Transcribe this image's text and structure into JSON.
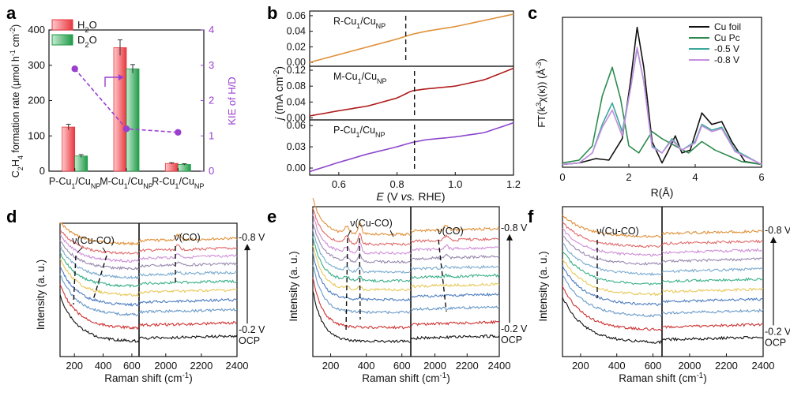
{
  "panels": {
    "a": {
      "label": "a"
    },
    "b": {
      "label": "b"
    },
    "c": {
      "label": "c"
    },
    "d": {
      "label": "d"
    },
    "e": {
      "label": "e"
    },
    "f": {
      "label": "f"
    }
  },
  "chart_data": [
    {
      "id": "a",
      "type": "bar",
      "categories": [
        "P-Cu1/CuNP",
        "M-Cu1/CuNP",
        "R-Cu1/CuNP"
      ],
      "series": [
        {
          "name": "H2O",
          "values": [
            125,
            350,
            22
          ],
          "errors": [
            8,
            22,
            2
          ],
          "color": "#e8373f"
        },
        {
          "name": "D2O",
          "values": [
            43,
            290,
            19
          ],
          "errors": [
            4,
            12,
            2
          ],
          "color": "#1f9a47"
        }
      ],
      "kie": {
        "values": [
          2.9,
          1.2,
          1.1
        ],
        "color": "#9a3fd0",
        "ylabel": "KIE of H/D",
        "ylim": [
          0,
          4
        ],
        "yticks": [
          "0",
          "1",
          "2",
          "3",
          "4"
        ]
      },
      "ylabel": "C2H4 formation rate (μmol h-1 cm-2)",
      "ylim": [
        0,
        400
      ],
      "yticks": [
        "0",
        "100",
        "200",
        "300",
        "400"
      ],
      "legend_position": "top-left"
    },
    {
      "id": "b",
      "type": "line",
      "xlabel": "E (V vs. RHE)",
      "ylabel": "j (mA cm-2)",
      "xlim": [
        0.5,
        1.2
      ],
      "xticks": [
        "0.6",
        "0.8",
        "1.0",
        "1.2"
      ],
      "subpanels": [
        {
          "name": "R-Cu1/CuNP",
          "color": "#e0913a",
          "ylim": [
            -0.005,
            0.066
          ],
          "yticks": [
            "0.00",
            "0.02",
            "0.04",
            "0.06"
          ],
          "marker": 0.83,
          "x": [
            0.5,
            0.6,
            0.7,
            0.8,
            0.85,
            0.9,
            1.0,
            1.1,
            1.2
          ],
          "y": [
            0.0,
            0.01,
            0.02,
            0.03,
            0.036,
            0.04,
            0.046,
            0.054,
            0.062
          ]
        },
        {
          "name": "M-Cu1/CuNP",
          "color": "#b01c1c",
          "ylim": [
            -0.005,
            0.13
          ],
          "yticks": [
            "0.00",
            "0.04",
            "0.08",
            "0.12"
          ],
          "marker": 0.86,
          "x": [
            0.5,
            0.6,
            0.7,
            0.8,
            0.85,
            0.9,
            1.0,
            1.1,
            1.2
          ],
          "y": [
            0.005,
            0.018,
            0.03,
            0.05,
            0.068,
            0.073,
            0.08,
            0.096,
            0.125
          ]
        },
        {
          "name": "P-Cu1/CuNP",
          "color": "#8c46cc",
          "ylim": [
            -0.01,
            0.068
          ],
          "yticks": [
            "0.00",
            "0.03",
            "0.06"
          ],
          "marker": 0.86,
          "x": [
            0.5,
            0.6,
            0.7,
            0.8,
            0.85,
            0.9,
            1.0,
            1.1,
            1.2
          ],
          "y": [
            -0.005,
            0.008,
            0.02,
            0.03,
            0.036,
            0.04,
            0.044,
            0.05,
            0.064
          ]
        }
      ]
    },
    {
      "id": "c",
      "type": "line",
      "xlabel": "R(Å)",
      "ylabel": "FT(k3χ(κ)) (Å-3)",
      "xlim": [
        0,
        6
      ],
      "xticks": [
        "0",
        "2",
        "4",
        "6"
      ],
      "legend_position": "top-right",
      "series": [
        {
          "name": "Cu foil",
          "color": "#111111",
          "x": [
            0,
            0.5,
            1.0,
            1.4,
            1.8,
            2.05,
            2.25,
            2.45,
            2.7,
            3.0,
            3.2,
            3.4,
            3.6,
            3.85,
            4.2,
            4.5,
            4.8,
            5.1,
            5.5,
            6
          ],
          "y": [
            0.02,
            0.03,
            0.06,
            0.05,
            0.2,
            0.6,
            0.98,
            0.7,
            0.18,
            0.03,
            0.12,
            0.22,
            0.1,
            0.12,
            0.38,
            0.3,
            0.32,
            0.18,
            0.04,
            0.02
          ]
        },
        {
          "name": "Cu Pc",
          "color": "#2e8b4f",
          "x": [
            0,
            0.5,
            0.9,
            1.2,
            1.5,
            1.75,
            2.0,
            2.3,
            2.7,
            3.0,
            3.4,
            3.8,
            4.2,
            4.6,
            5.0,
            5.4,
            6
          ],
          "y": [
            0.03,
            0.05,
            0.15,
            0.5,
            0.7,
            0.48,
            0.15,
            0.1,
            0.25,
            0.2,
            0.15,
            0.1,
            0.18,
            0.12,
            0.08,
            0.04,
            0.02
          ]
        },
        {
          "name": "-0.5 V",
          "color": "#3aa89a",
          "x": [
            0,
            0.5,
            0.9,
            1.2,
            1.5,
            1.8,
            2.05,
            2.25,
            2.45,
            2.7,
            3.0,
            3.3,
            3.6,
            4.0,
            4.2,
            4.5,
            4.8,
            5.2,
            6
          ],
          "y": [
            0.02,
            0.03,
            0.1,
            0.3,
            0.45,
            0.25,
            0.55,
            0.83,
            0.6,
            0.15,
            0.1,
            0.2,
            0.12,
            0.18,
            0.3,
            0.26,
            0.28,
            0.12,
            0.02
          ]
        },
        {
          "name": "-0.8 V",
          "color": "#c68ee0",
          "x": [
            0,
            0.5,
            0.9,
            1.2,
            1.5,
            1.8,
            2.05,
            2.25,
            2.45,
            2.7,
            3.0,
            3.3,
            3.6,
            4.0,
            4.2,
            4.5,
            4.8,
            5.2,
            6
          ],
          "y": [
            0.02,
            0.03,
            0.1,
            0.28,
            0.4,
            0.22,
            0.55,
            0.84,
            0.6,
            0.14,
            0.1,
            0.19,
            0.12,
            0.17,
            0.29,
            0.25,
            0.27,
            0.11,
            0.02
          ]
        }
      ]
    },
    {
      "id": "d",
      "type": "line",
      "xlabel": "Raman shift (cm-1)",
      "ylabel": "Intensity (a. u.)",
      "left_xlim": [
        100,
        650
      ],
      "left_xticks": [
        "200",
        "400",
        "600"
      ],
      "right_xlim": [
        1850,
        2400
      ],
      "right_xticks": [
        "2000",
        "2200",
        "2400"
      ],
      "peak_labels": [
        "ν(Cu-CO)",
        "ν(CO)"
      ],
      "potential_labels": [
        "-0.8 V",
        "-0.2 V",
        "OCP"
      ],
      "curves": 11,
      "tail_levels": [
        0.97,
        0.88,
        0.81,
        0.74,
        0.66,
        0.58,
        0.5,
        0.41,
        0.32,
        0.2,
        0.08
      ],
      "colors": [
        "#e0913a",
        "#e06a6a",
        "#cf8fd8",
        "#9a8ab0",
        "#7aaad0",
        "#3ab08a",
        "#e7c95a",
        "#4f7ec0",
        "#6a9ac8",
        "#cf3434",
        "#111111"
      ]
    },
    {
      "id": "e",
      "type": "line",
      "xlabel": "Raman shift (cm-1)",
      "ylabel": "Intensity (a. u.)",
      "left_xlim": [
        100,
        650
      ],
      "left_xticks": [
        "200",
        "400",
        "600"
      ],
      "right_xlim": [
        1850,
        2400
      ],
      "right_xticks": [
        "2000",
        "2200",
        "2400"
      ],
      "peak_labels": [
        "ν(Cu-CO)",
        "ν(CO)"
      ],
      "potential_labels": [
        "-0.8 V",
        "-0.2 V",
        "OCP"
      ],
      "curves": 11,
      "tail_levels": [
        0.92,
        0.84,
        0.77,
        0.7,
        0.62,
        0.55,
        0.48,
        0.4,
        0.3,
        0.18,
        0.07
      ],
      "colors": [
        "#e0913a",
        "#e06a6a",
        "#cf8fd8",
        "#9a8ab0",
        "#7aaad0",
        "#3ab08a",
        "#e7c95a",
        "#4f7ec0",
        "#6a9ac8",
        "#cf3434",
        "#111111"
      ]
    },
    {
      "id": "f",
      "type": "line",
      "xlabel": "Raman shift (cm-1)",
      "ylabel": "Intensity (a. u.)",
      "left_xlim": [
        100,
        650
      ],
      "left_xticks": [
        "200",
        "400",
        "600"
      ],
      "right_xlim": [
        1850,
        2400
      ],
      "right_xticks": [
        "2000",
        "2200",
        "2400"
      ],
      "peak_labels": [
        "ν(Cu-CO)"
      ],
      "potential_labels": [
        "-0.8 V",
        "-0.2 V",
        "OCP"
      ],
      "curves": 11,
      "tail_levels": [
        0.9,
        0.82,
        0.75,
        0.68,
        0.6,
        0.52,
        0.44,
        0.36,
        0.27,
        0.16,
        0.06
      ],
      "colors": [
        "#e0913a",
        "#e06a6a",
        "#cf8fd8",
        "#9a8ab0",
        "#7aaad0",
        "#3ab08a",
        "#e7c95a",
        "#4f7ec0",
        "#6a9ac8",
        "#cf3434",
        "#111111"
      ]
    }
  ]
}
